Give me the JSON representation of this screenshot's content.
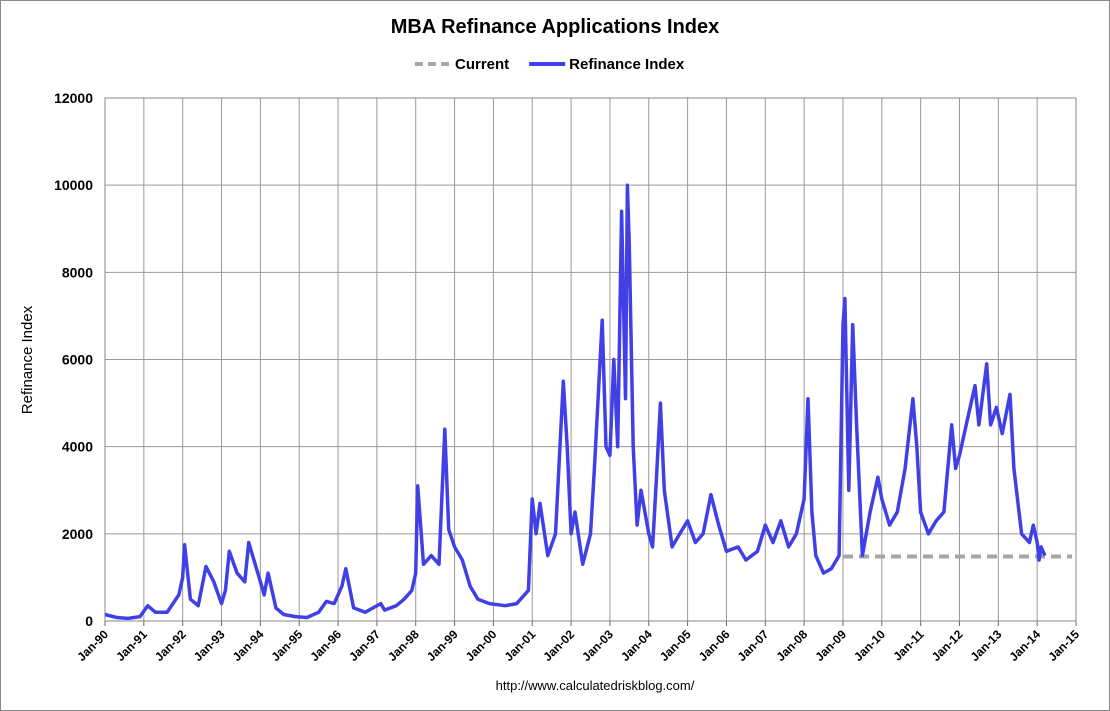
{
  "chart_data": {
    "type": "line",
    "title": "MBA Refinance Applications Index",
    "y_label": "Refinance Index",
    "source": "http://www.calculatedriskblog.com/",
    "legend": "top",
    "grid": true,
    "xlim": [
      1990,
      2015
    ],
    "ylim": [
      0,
      12000
    ],
    "yticks": [
      0,
      2000,
      4000,
      6000,
      8000,
      10000,
      12000
    ],
    "xticks": [
      {
        "value": 1990,
        "label": "Jan-90"
      },
      {
        "value": 1991,
        "label": "Jan-91"
      },
      {
        "value": 1992,
        "label": "Jan-92"
      },
      {
        "value": 1993,
        "label": "Jan-93"
      },
      {
        "value": 1994,
        "label": "Jan-94"
      },
      {
        "value": 1995,
        "label": "Jan-95"
      },
      {
        "value": 1996,
        "label": "Jan-96"
      },
      {
        "value": 1997,
        "label": "Jan-97"
      },
      {
        "value": 1998,
        "label": "Jan-98"
      },
      {
        "value": 1999,
        "label": "Jan-99"
      },
      {
        "value": 2000,
        "label": "Jan-00"
      },
      {
        "value": 2001,
        "label": "Jan-01"
      },
      {
        "value": 2002,
        "label": "Jan-02"
      },
      {
        "value": 2003,
        "label": "Jan-03"
      },
      {
        "value": 2004,
        "label": "Jan-04"
      },
      {
        "value": 2005,
        "label": "Jan-05"
      },
      {
        "value": 2006,
        "label": "Jan-06"
      },
      {
        "value": 2007,
        "label": "Jan-07"
      },
      {
        "value": 2008,
        "label": "Jan-08"
      },
      {
        "value": 2009,
        "label": "Jan-09"
      },
      {
        "value": 2010,
        "label": "Jan-10"
      },
      {
        "value": 2011,
        "label": "Jan-11"
      },
      {
        "value": 2012,
        "label": "Jan-12"
      },
      {
        "value": 2013,
        "label": "Jan-13"
      },
      {
        "value": 2014,
        "label": "Jan-14"
      },
      {
        "value": 2015,
        "label": "Jan-15"
      }
    ],
    "series": [
      {
        "name": "Current",
        "color": "#a6a6a6",
        "dashed": true,
        "x": [
          2009.0,
          2014.9
        ],
        "values": [
          1480,
          1480
        ]
      },
      {
        "name": "Refinance Index",
        "color": "#4040e6",
        "x": [
          1990.0,
          1990.3,
          1990.6,
          1990.9,
          1991.1,
          1991.3,
          1991.6,
          1991.9,
          1992.0,
          1992.05,
          1992.2,
          1992.4,
          1992.6,
          1992.8,
          1993.0,
          1993.1,
          1993.2,
          1993.4,
          1993.6,
          1993.7,
          1993.8,
          1994.0,
          1994.1,
          1994.2,
          1994.4,
          1994.6,
          1994.9,
          1995.2,
          1995.5,
          1995.7,
          1995.9,
          1996.1,
          1996.2,
          1996.4,
          1996.7,
          1996.9,
          1997.1,
          1997.2,
          1997.5,
          1997.7,
          1997.9,
          1998.0,
          1998.05,
          1998.2,
          1998.4,
          1998.6,
          1998.75,
          1998.85,
          1999.0,
          1999.2,
          1999.4,
          1999.6,
          1999.9,
          2000.3,
          2000.6,
          2000.9,
          2001.0,
          2001.1,
          2001.2,
          2001.4,
          2001.6,
          2001.8,
          2001.9,
          2002.0,
          2002.1,
          2002.3,
          2002.5,
          2002.6,
          2002.8,
          2002.9,
          2003.0,
          2003.1,
          2003.2,
          2003.3,
          2003.4,
          2003.45,
          2003.5,
          2003.6,
          2003.7,
          2003.8,
          2004.0,
          2004.1,
          2004.2,
          2004.3,
          2004.4,
          2004.6,
          2004.8,
          2005.0,
          2005.2,
          2005.4,
          2005.6,
          2005.8,
          2006.0,
          2006.3,
          2006.5,
          2006.8,
          2007.0,
          2007.2,
          2007.4,
          2007.6,
          2007.8,
          2008.0,
          2008.1,
          2008.2,
          2008.3,
          2008.5,
          2008.7,
          2008.9,
          2009.0,
          2009.05,
          2009.15,
          2009.25,
          2009.35,
          2009.5,
          2009.7,
          2009.9,
          2010.0,
          2010.2,
          2010.4,
          2010.6,
          2010.8,
          2010.9,
          2011.0,
          2011.2,
          2011.4,
          2011.6,
          2011.8,
          2011.9,
          2012.0,
          2012.2,
          2012.4,
          2012.5,
          2012.7,
          2012.8,
          2012.95,
          2013.1,
          2013.3,
          2013.4,
          2013.6,
          2013.8,
          2013.9,
          2014.0,
          2014.05,
          2014.1,
          2014.2
        ],
        "values": [
          150,
          80,
          60,
          100,
          350,
          200,
          200,
          600,
          1000,
          1750,
          500,
          350,
          1250,
          900,
          400,
          700,
          1600,
          1100,
          900,
          1800,
          1500,
          900,
          600,
          1100,
          300,
          150,
          100,
          80,
          200,
          450,
          400,
          800,
          1200,
          300,
          200,
          300,
          400,
          250,
          350,
          500,
          700,
          1100,
          3100,
          1300,
          1500,
          1300,
          4400,
          2100,
          1700,
          1400,
          800,
          500,
          400,
          350,
          400,
          700,
          2800,
          2000,
          2700,
          1500,
          2000,
          5500,
          4000,
          2000,
          2500,
          1300,
          2000,
          3500,
          6900,
          4000,
          3800,
          6000,
          4000,
          9400,
          5100,
          10000,
          8600,
          4000,
          2200,
          3000,
          2000,
          1700,
          3300,
          5000,
          3000,
          1700,
          2000,
          2300,
          1800,
          2000,
          2900,
          2200,
          1600,
          1700,
          1400,
          1600,
          2200,
          1800,
          2300,
          1700,
          2000,
          2800,
          5100,
          2500,
          1500,
          1100,
          1200,
          1500,
          6800,
          7400,
          3000,
          6800,
          4500,
          1500,
          2500,
          3300,
          2800,
          2200,
          2500,
          3500,
          5100,
          4000,
          2500,
          2000,
          2300,
          2500,
          4500,
          3500,
          3800,
          4600,
          5400,
          4500,
          5900,
          4500,
          4900,
          4300,
          5200,
          3500,
          2000,
          1800,
          2200,
          1800,
          1400,
          1700,
          1500
        ]
      }
    ]
  }
}
